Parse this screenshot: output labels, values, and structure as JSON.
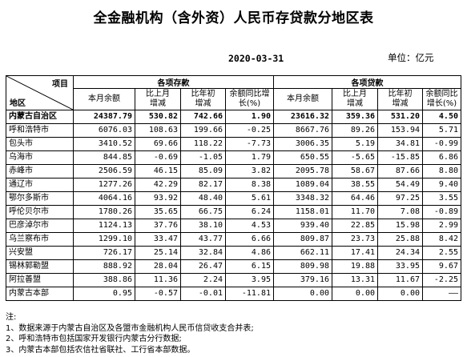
{
  "title": "全金融机构（含外资）人民币存贷款分地区表",
  "date": "2020-03-31",
  "unit": "单位：亿元",
  "header": {
    "item_label": "项目",
    "region_label": "地区",
    "deposits_group": "各项存款",
    "loans_group": "各项贷款",
    "columns": [
      {
        "top": "本月余额",
        "bottom": ""
      },
      {
        "top": "比上月",
        "bottom": "增减"
      },
      {
        "top": "比年初",
        "bottom": "增减"
      },
      {
        "top": "余额同比增",
        "bottom": "长(%)"
      },
      {
        "top": "本月余额",
        "bottom": ""
      },
      {
        "top": "比上月",
        "bottom": "增减"
      },
      {
        "top": "比年初",
        "bottom": "增减"
      },
      {
        "top": "余额同比",
        "bottom": "增长(%)"
      }
    ]
  },
  "rows": [
    {
      "region": "内蒙古自治区",
      "dep_balance": "24387.79",
      "dep_mom": "530.82",
      "dep_ytd": "742.66",
      "dep_yoy": "1.90",
      "loan_balance": "23616.32",
      "loan_mom": "359.36",
      "loan_ytd": "531.20",
      "loan_yoy": "4.50"
    },
    {
      "region": "呼和浩特市",
      "dep_balance": "6076.03",
      "dep_mom": "108.63",
      "dep_ytd": "199.66",
      "dep_yoy": "-0.25",
      "loan_balance": "8667.76",
      "loan_mom": "89.26",
      "loan_ytd": "153.94",
      "loan_yoy": "5.71"
    },
    {
      "region": "包头市",
      "dep_balance": "3410.52",
      "dep_mom": "69.66",
      "dep_ytd": "118.22",
      "dep_yoy": "-7.73",
      "loan_balance": "3006.35",
      "loan_mom": "5.19",
      "loan_ytd": "34.81",
      "loan_yoy": "-0.99"
    },
    {
      "region": "乌海市",
      "dep_balance": "844.85",
      "dep_mom": "-0.69",
      "dep_ytd": "-1.05",
      "dep_yoy": "1.79",
      "loan_balance": "650.55",
      "loan_mom": "-5.65",
      "loan_ytd": "-15.85",
      "loan_yoy": "6.86"
    },
    {
      "region": "赤峰市",
      "dep_balance": "2506.59",
      "dep_mom": "46.15",
      "dep_ytd": "85.09",
      "dep_yoy": "3.82",
      "loan_balance": "2095.78",
      "loan_mom": "58.67",
      "loan_ytd": "87.66",
      "loan_yoy": "8.80"
    },
    {
      "region": "通辽市",
      "dep_balance": "1277.26",
      "dep_mom": "42.29",
      "dep_ytd": "82.17",
      "dep_yoy": "8.38",
      "loan_balance": "1089.04",
      "loan_mom": "38.55",
      "loan_ytd": "54.49",
      "loan_yoy": "9.40"
    },
    {
      "region": "鄂尔多斯市",
      "dep_balance": "4064.16",
      "dep_mom": "93.92",
      "dep_ytd": "48.40",
      "dep_yoy": "5.61",
      "loan_balance": "3348.32",
      "loan_mom": "64.46",
      "loan_ytd": "97.25",
      "loan_yoy": "3.55"
    },
    {
      "region": "呼伦贝尔市",
      "dep_balance": "1780.26",
      "dep_mom": "35.65",
      "dep_ytd": "66.75",
      "dep_yoy": "6.24",
      "loan_balance": "1158.01",
      "loan_mom": "11.70",
      "loan_ytd": "7.08",
      "loan_yoy": "-0.89"
    },
    {
      "region": "巴彦淖尔市",
      "dep_balance": "1124.13",
      "dep_mom": "37.76",
      "dep_ytd": "38.10",
      "dep_yoy": "4.53",
      "loan_balance": "939.40",
      "loan_mom": "22.85",
      "loan_ytd": "15.98",
      "loan_yoy": "2.99"
    },
    {
      "region": "乌兰察布市",
      "dep_balance": "1299.10",
      "dep_mom": "33.47",
      "dep_ytd": "43.77",
      "dep_yoy": "6.66",
      "loan_balance": "809.87",
      "loan_mom": "23.73",
      "loan_ytd": "25.88",
      "loan_yoy": "8.42"
    },
    {
      "region": "兴安盟",
      "dep_balance": "726.17",
      "dep_mom": "25.14",
      "dep_ytd": "32.84",
      "dep_yoy": "4.86",
      "loan_balance": "662.11",
      "loan_mom": "17.41",
      "loan_ytd": "24.34",
      "loan_yoy": "2.55"
    },
    {
      "region": "锡林郭勒盟",
      "dep_balance": "888.92",
      "dep_mom": "28.04",
      "dep_ytd": "26.47",
      "dep_yoy": "6.15",
      "loan_balance": "809.98",
      "loan_mom": "19.88",
      "loan_ytd": "33.95",
      "loan_yoy": "9.67"
    },
    {
      "region": "阿拉善盟",
      "dep_balance": "388.86",
      "dep_mom": "11.36",
      "dep_ytd": "2.24",
      "dep_yoy": "3.95",
      "loan_balance": "379.16",
      "loan_mom": "13.31",
      "loan_ytd": "11.67",
      "loan_yoy": "-2.25"
    },
    {
      "region": "内蒙古本部",
      "dep_balance": "0.95",
      "dep_mom": "-0.57",
      "dep_ytd": "-0.01",
      "dep_yoy": "-11.81",
      "loan_balance": "0.00",
      "loan_mom": "0.00",
      "loan_ytd": "0.00",
      "loan_yoy": "——"
    }
  ],
  "notes": [
    "注:",
    "1、数据来源于内蒙古自治区及各盟市金融机构人民币信贷收支合并表;",
    "2、呼和浩特市包括国家开发银行内蒙古分行数据;",
    "3、内蒙古本部包括农信社省联社、工行省本部数据。"
  ]
}
